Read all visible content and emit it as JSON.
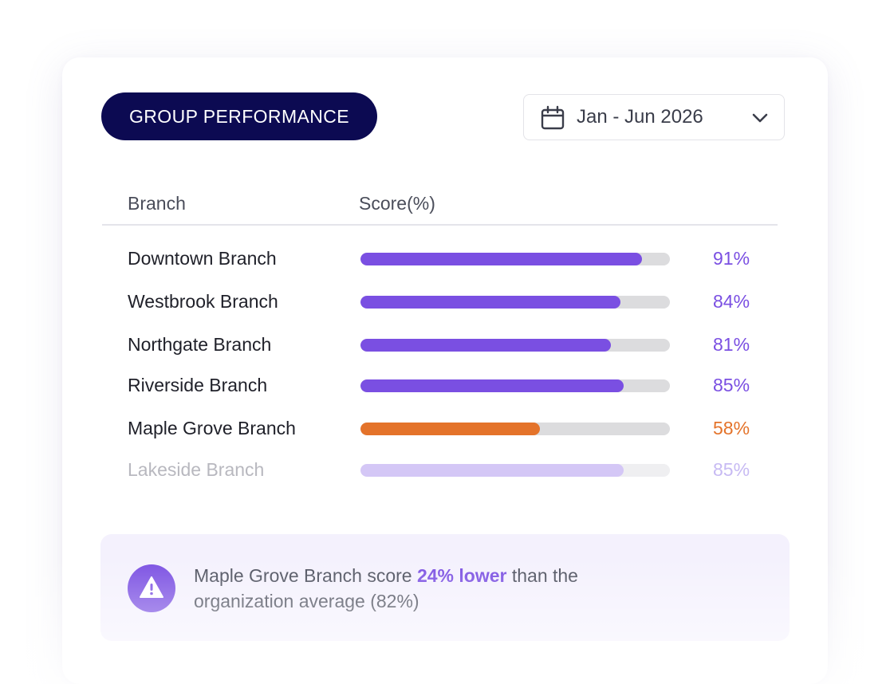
{
  "header": {
    "title": "GROUP PERFORMANCE",
    "date_range": "Jan - Jun 2026",
    "calendar_icon": "calendar-icon",
    "dropdown_icon": "chevron-down-icon"
  },
  "table": {
    "columns": [
      "Branch",
      "Score(%)"
    ],
    "rows": [
      {
        "name": "Downtown Branch",
        "score": 91,
        "label": "91%",
        "color": "#7a4fe2",
        "state": "normal"
      },
      {
        "name": "Westbrook Branch",
        "score": 84,
        "label": "84%",
        "color": "#7a4fe2",
        "state": "normal"
      },
      {
        "name": "Northgate Branch",
        "score": 81,
        "label": "81%",
        "color": "#7a4fe2",
        "state": "normal"
      },
      {
        "name": "Riverside Branch",
        "score": 85,
        "label": "85%",
        "color": "#7a4fe2",
        "state": "normal"
      },
      {
        "name": "Maple Grove Branch",
        "score": 58,
        "label": "58%",
        "color": "#e4732a",
        "state": "normal"
      },
      {
        "name": "Lakeside Branch",
        "score": 85,
        "label": "85%",
        "color": "#d4c7f6",
        "state": "faded"
      }
    ]
  },
  "alert": {
    "icon": "warning-icon",
    "text_before": "Maple Grove Branch score ",
    "highlight": "24% lower",
    "text_after": " than the organization average (82%)"
  },
  "colors": {
    "accent": "#7a4fe2",
    "warning": "#e4732a",
    "pill_bg": "#0c0a52",
    "faded_text": "#c7baf3"
  }
}
